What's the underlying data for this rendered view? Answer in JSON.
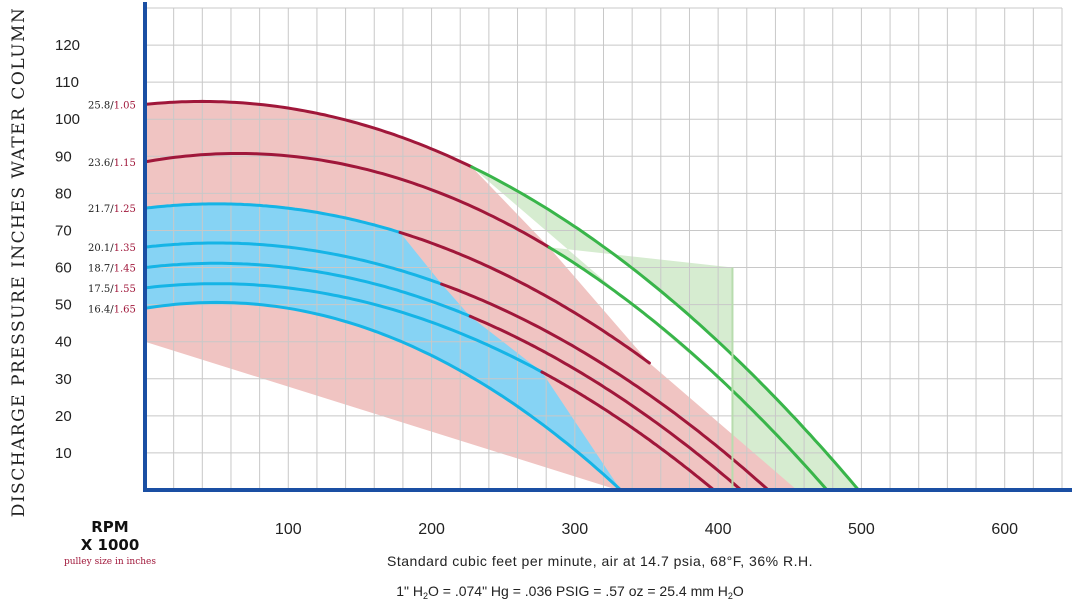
{
  "chart_data": {
    "type": "line",
    "ylabel": "DISCHARGE PRESSURE INCHES WATER COLUMN",
    "xlabel": "Standard cubic feet per minute, air at 14.7 psia, 68°F, 36% R.H.",
    "conversion_note": {
      "part1": "1\" H",
      "sub1": "2",
      "part2": "O = .074\" Hg = .036 PSIG = .57 oz = 25.4 mm H",
      "sub2": "2",
      "part3": "O"
    },
    "corner_label": {
      "line1": "RPM",
      "line2": "X 1000",
      "line3": "pulley size in inches"
    },
    "xlim": [
      0,
      640
    ],
    "ylim": [
      0,
      130
    ],
    "x_ticks": [
      100,
      200,
      300,
      400,
      500,
      600
    ],
    "y_ticks": [
      10,
      20,
      30,
      40,
      50,
      60,
      70,
      80,
      90,
      100,
      110,
      120
    ],
    "grid": true,
    "colors": {
      "axis": "#1a4fa3",
      "grid": "#c8c8c8",
      "red": "#a0173a",
      "blue": "#15b4e6",
      "green": "#39b54a",
      "red_fill": "#f0c4c2",
      "blue_fill": "#86d3f4",
      "green_fill": "#d6ecd0"
    },
    "series": [
      {
        "rpm": "25.8",
        "pulley": "1.05",
        "y0": 104,
        "peak_x": 40,
        "x_max": 498,
        "red_until": 228,
        "blue_until": 0,
        "green_end": 498
      },
      {
        "rpm": "23.6",
        "pulley": "1.15",
        "y0": 88.5,
        "peak_x": 65,
        "x_max": 476,
        "red_until": 282,
        "blue_until": 0,
        "green_end": 476
      },
      {
        "rpm": "21.7",
        "pulley": "1.25",
        "y0": 76,
        "peak_x": 50,
        "x_max": 455,
        "red_until": 352,
        "blue_until": 178,
        "green_end": 0
      },
      {
        "rpm": "20.1",
        "pulley": "1.35",
        "y0": 65.5,
        "peak_x": 50,
        "x_max": 435,
        "red_until": 435,
        "blue_until": 207,
        "green_end": 0
      },
      {
        "rpm": "18.7",
        "pulley": "1.45",
        "y0": 60,
        "peak_x": 50,
        "x_max": 416,
        "red_until": 416,
        "blue_until": 227,
        "green_end": 0
      },
      {
        "rpm": "17.5",
        "pulley": "1.55",
        "y0": 54.5,
        "peak_x": 50,
        "x_max": 397,
        "red_until": 397,
        "blue_until": 277,
        "green_end": 0
      },
      {
        "rpm": "16.4",
        "pulley": "1.65",
        "y0": 49,
        "peak_x": 50,
        "x_max": 332,
        "red_until": 0,
        "blue_until": 332,
        "green_end": 0
      }
    ],
    "green_end_point": {
      "x": 410,
      "y": 60
    }
  }
}
